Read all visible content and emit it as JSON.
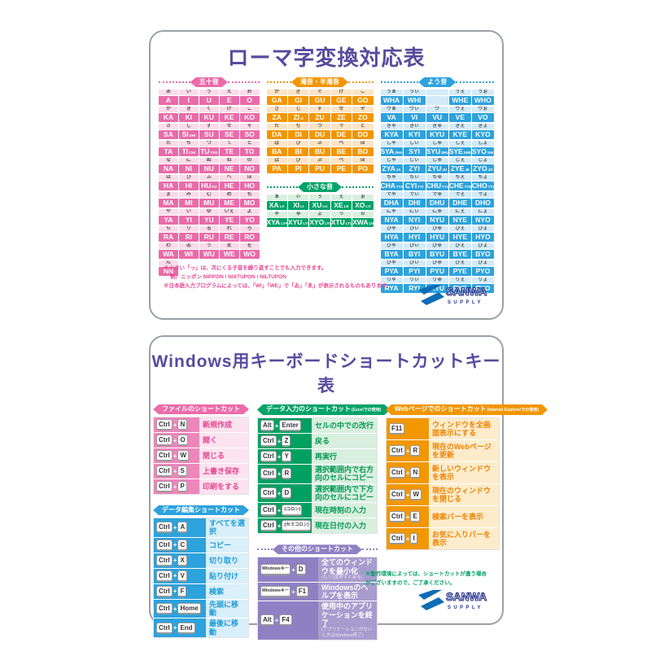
{
  "logo": {
    "brand": "SANWA",
    "sub": "SUPPLY",
    "mark_color": "#0e6db5",
    "text_color": "#28348a"
  },
  "colors": {
    "title_purple": "#574b9e",
    "pink": "#ec6ba9",
    "orange": "#f29600",
    "green": "#00a369",
    "blue": "#2da2dc",
    "purple": "#8d81c3"
  },
  "card1": {
    "title": "ローマ字変換対応表",
    "sections": [
      {
        "id": "gojuon",
        "header": "五十音",
        "color": "pink",
        "groups": [
          {
            "kana": [
              "あ",
              "い",
              "う",
              "え",
              "お"
            ],
            "romaji": [
              "A",
              "I",
              "U",
              "E",
              "O"
            ]
          },
          {
            "kana": [
              "か",
              "き",
              "く",
              "け",
              "こ"
            ],
            "romaji": [
              "KA",
              "KI",
              "KU",
              "KE",
              "KO"
            ]
          },
          {
            "kana": [
              "さ",
              "し",
              "す",
              "せ",
              "そ"
            ],
            "romaji": [
              "SA",
              "SI|SHI",
              "SU",
              "SE",
              "SO"
            ]
          },
          {
            "kana": [
              "た",
              "ち",
              "つ",
              "て",
              "と"
            ],
            "romaji": [
              "TA",
              "TI|CHI",
              "TU|TSU",
              "TE",
              "TO"
            ]
          },
          {
            "kana": [
              "な",
              "に",
              "ぬ",
              "ね",
              "の"
            ],
            "romaji": [
              "NA",
              "NI",
              "NU",
              "NE",
              "NO"
            ]
          },
          {
            "kana": [
              "は",
              "ひ",
              "ふ",
              "へ",
              "ほ"
            ],
            "romaji": [
              "HA",
              "HI",
              "HU|FU",
              "HE",
              "HO"
            ]
          },
          {
            "kana": [
              "ま",
              "み",
              "む",
              "め",
              "も"
            ],
            "romaji": [
              "MA",
              "MI",
              "MU",
              "ME",
              "MO"
            ]
          },
          {
            "kana": [
              "や",
              "い",
              "ゆ",
              "いぇ",
              "よ"
            ],
            "romaji": [
              "YA",
              "YI",
              "YU",
              "YE",
              "YO"
            ]
          },
          {
            "kana": [
              "ら",
              "り",
              "る",
              "れ",
              "ろ"
            ],
            "romaji": [
              "RA",
              "RI",
              "RU",
              "RE",
              "RO"
            ]
          },
          {
            "kana": [
              "わ",
              "ゐ",
              "う",
              "ゑ",
              "を"
            ],
            "romaji": [
              "WA",
              "WI",
              "WU",
              "WE",
              "WO"
            ]
          },
          {
            "kana": [
              "ん",
              null,
              null,
              null,
              null
            ],
            "romaji": [
              "NN",
              null,
              null,
              null,
              null
            ]
          }
        ]
      },
      {
        "id": "dakuon",
        "header": "濁音・半濁音",
        "color": "orange",
        "groups": [
          {
            "kana": [
              "が",
              "ぎ",
              "ぐ",
              "げ",
              "ご"
            ],
            "romaji": [
              "GA",
              "GI",
              "GU",
              "GE",
              "GO"
            ]
          },
          {
            "kana": [
              "ざ",
              "じ",
              "ず",
              "ぜ",
              "ぞ"
            ],
            "romaji": [
              "ZA",
              "ZI|JI",
              "ZU",
              "ZE",
              "ZO"
            ]
          },
          {
            "kana": [
              "だ",
              "ぢ",
              "づ",
              "で",
              "ど"
            ],
            "romaji": [
              "DA",
              "DI",
              "DU",
              "DE",
              "DO"
            ]
          },
          {
            "kana": [
              "ば",
              "び",
              "ぶ",
              "べ",
              "ぼ"
            ],
            "romaji": [
              "BA",
              "BI",
              "BU",
              "BE",
              "BO"
            ]
          },
          {
            "kana": [
              "ぱ",
              "ぴ",
              "ぷ",
              "ぺ",
              "ぽ"
            ],
            "romaji": [
              "PA",
              "PI",
              "PU",
              "PE",
              "PO"
            ]
          }
        ]
      },
      {
        "id": "chiisana",
        "header": "小さな音",
        "color": "green",
        "groups": [
          {
            "kana": [
              "ぁ",
              "ぃ",
              "ぅ",
              "ぇ",
              "ぉ"
            ],
            "romaji": [
              "XA|LA",
              "XI|LI",
              "XU|LU",
              "XE|LE",
              "XO|LO"
            ]
          },
          {
            "kana": [
              "ゃ",
              "ゅ",
              "ょ",
              "っ",
              "ゎ"
            ],
            "romaji": [
              "XYA|LYA",
              "XYU|LYU",
              "XYO|LYO",
              "XTU|LTU",
              "XWA|LWA"
            ]
          }
        ]
      },
      {
        "id": "youon",
        "header": "よう音",
        "color": "blue",
        "groups": [
          {
            "kana": [
              "うぁ",
              "うぃ",
              "",
              "うぇ",
              "うぉ"
            ],
            "romaji": [
              "WHA",
              "WHI",
              "",
              "WHE",
              "WHO"
            ]
          },
          {
            "kana": [
              "ヴぁ",
              "ヴぃ",
              "ヴ",
              "ヴぇ",
              "ヴぉ"
            ],
            "romaji": [
              "VA",
              "VI",
              "VU",
              "VE",
              "VO"
            ]
          },
          {
            "kana": [
              "きゃ",
              "きぃ",
              "きゅ",
              "きぇ",
              "きょ"
            ],
            "romaji": [
              "KYA",
              "KYI",
              "KYU",
              "KYE",
              "KYO"
            ]
          },
          {
            "kana": [
              "しゃ",
              "しぃ",
              "しゅ",
              "しぇ",
              "しょ"
            ],
            "romaji": [
              "SYA|SHA",
              "SYI",
              "SYU|SHU",
              "SYE|SHE",
              "SYO|SHO"
            ]
          },
          {
            "kana": [
              "じゃ",
              "じぃ",
              "じゅ",
              "じぇ",
              "じょ"
            ],
            "romaji": [
              "ZYA|JA",
              "ZYI",
              "ZYU|JU",
              "ZYE|JE",
              "ZYO|JO"
            ]
          },
          {
            "kana": [
              "ちゃ",
              "ちぃ",
              "ちゅ",
              "ちぇ",
              "ちょ"
            ],
            "romaji": [
              "CHA|TYA",
              "CYI|TYI",
              "CHU|TYU",
              "CHE|TYE",
              "CHO|TYO"
            ]
          },
          {
            "kana": [
              "でゃ",
              "でぃ",
              "でゅ",
              "でぇ",
              "でょ"
            ],
            "romaji": [
              "DHA",
              "DHI",
              "DHU",
              "DHE",
              "DHO"
            ]
          },
          {
            "kana": [
              "にゃ",
              "にぃ",
              "にゅ",
              "にぇ",
              "にょ"
            ],
            "romaji": [
              "NYA",
              "NYI",
              "NYU",
              "NYE",
              "NYO"
            ]
          },
          {
            "kana": [
              "ひゃ",
              "ひぃ",
              "ひゅ",
              "ひぇ",
              "ひょ"
            ],
            "romaji": [
              "HYA",
              "HYI",
              "HYU",
              "HYE",
              "HYO"
            ]
          },
          {
            "kana": [
              "びゃ",
              "びぃ",
              "びゅ",
              "びぇ",
              "びょ"
            ],
            "romaji": [
              "BYA",
              "BYI",
              "BYU",
              "BYE",
              "BYO"
            ]
          },
          {
            "kana": [
              "ぴゃ",
              "ぴぃ",
              "ぴゅ",
              "ぴぇ",
              "ぴょ"
            ],
            "romaji": [
              "PYA",
              "PYI",
              "PYU",
              "PYE",
              "PYO"
            ]
          },
          {
            "kana": [
              "りゃ",
              "りぃ",
              "りゅ",
              "りぇ",
              "りょ"
            ],
            "romaji": [
              "RYA",
              "RYI",
              "RYU",
              "RYE",
              "RYO"
            ]
          }
        ]
      }
    ],
    "notes": [
      "※小さい「っ」は、次にくる子音を繰り返すことでも入力できます。",
      "例）ニッポン NIPPON / NIXTUPON / NILTUPON",
      "※日本語入力プログラムによっては、「WI」「WE」で「ゐ」「ゑ」が表示されるものもあります。"
    ]
  },
  "card2": {
    "title": "Windows用キーボードショートカットキー表",
    "sections": [
      {
        "id": "file",
        "header": "ファイルのショートカット",
        "color": "pink",
        "rows": [
          {
            "keys": [
              "Ctrl",
              "N"
            ],
            "label": "新規作成"
          },
          {
            "keys": [
              "Ctrl",
              "O"
            ],
            "label": "開く"
          },
          {
            "keys": [
              "Ctrl",
              "W"
            ],
            "label": "閉じる"
          },
          {
            "keys": [
              "Ctrl",
              "S"
            ],
            "label": "上書き保存"
          },
          {
            "keys": [
              "Ctrl",
              "P"
            ],
            "label": "印刷をする"
          }
        ]
      },
      {
        "id": "edit",
        "header": "データ編集ショートカット",
        "color": "blue",
        "rows": [
          {
            "keys": [
              "Ctrl",
              "A"
            ],
            "label": "すべてを選択"
          },
          {
            "keys": [
              "Ctrl",
              "C"
            ],
            "label": "コピー"
          },
          {
            "keys": [
              "Ctrl",
              "X"
            ],
            "label": "切り取り"
          },
          {
            "keys": [
              "Ctrl",
              "V"
            ],
            "label": "貼り付け"
          },
          {
            "keys": [
              "Ctrl",
              "F"
            ],
            "label": "検索"
          },
          {
            "keys": [
              "Ctrl",
              "Home"
            ],
            "label": "先頭に移動"
          },
          {
            "keys": [
              "Ctrl",
              "End"
            ],
            "label": "最後に移動"
          }
        ]
      },
      {
        "id": "excel",
        "header": "データ入力のショートカット",
        "header_small": "(Excelでの使用)",
        "color": "green",
        "rows": [
          {
            "keys": [
              "Alt",
              "Enter"
            ],
            "label": "セルの中での改行"
          },
          {
            "keys": [
              "Ctrl",
              "Z"
            ],
            "label": "戻る"
          },
          {
            "keys": [
              "Ctrl",
              "Y"
            ],
            "label": "再実行"
          },
          {
            "keys": [
              "Ctrl",
              "R"
            ],
            "label": "選択範囲内で右方向のセルにコピー"
          },
          {
            "keys": [
              "Ctrl",
              "D"
            ],
            "label": "選択範囲内で下方向のセルにコピー"
          },
          {
            "keys": [
              "Ctrl",
              ":(コロン)"
            ],
            "label": "現在時刻の入力"
          },
          {
            "keys": [
              "Ctrl",
              ";(セミコロン)"
            ],
            "label": "現在日付の入力"
          }
        ]
      },
      {
        "id": "other",
        "header": "その他のショートカット",
        "color": "purple",
        "rows": [
          {
            "keys": [
              "Windowsキー",
              "D"
            ],
            "label": "全てのウィンドウを最小化",
            "sub": "(もう1度押すと戻る)"
          },
          {
            "keys": [
              "Windowsキー",
              "F1"
            ],
            "label": "Windowsのヘルプを表示"
          },
          {
            "keys": [
              "Alt",
              "F4"
            ],
            "label": "使用中のアプリケーションを終了",
            "sub": "(アプリケーションがないときはWindows終了)"
          }
        ]
      },
      {
        "id": "web",
        "header": "Webページでのショートカット",
        "header_small": "(Internet Explorerでの使用)",
        "color": "orange",
        "rows": [
          {
            "keys": [
              "F11"
            ],
            "label": "ウィンドウを全画面表示にする"
          },
          {
            "keys": [
              "Ctrl",
              "R"
            ],
            "label": "現在のWebページを更新"
          },
          {
            "keys": [
              "Ctrl",
              "N"
            ],
            "label": "新しいウィンドウを表示"
          },
          {
            "keys": [
              "Ctrl",
              "W"
            ],
            "label": "現在のウィンドウを閉じる"
          },
          {
            "keys": [
              "Ctrl",
              "E"
            ],
            "label": "検索バーを表示"
          },
          {
            "keys": [
              "Ctrl",
              "I"
            ],
            "label": "お気に入りバーを表示"
          }
        ]
      }
    ],
    "note": "※動作環境によっては、ショートカットが違う場合がございますので、ご了承ください。"
  }
}
